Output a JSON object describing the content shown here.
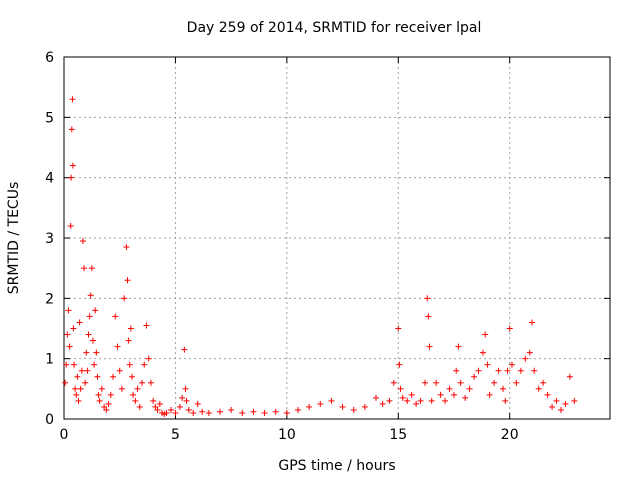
{
  "chart_data": {
    "type": "scatter",
    "title": "Day 259 of 2014, SRMTID for receiver lpal",
    "xlabel": "GPS time / hours",
    "ylabel": "SRMTID / TECUs",
    "xlim": [
      0,
      24.5
    ],
    "ylim": [
      0,
      6
    ],
    "xticks": [
      0,
      5,
      10,
      15,
      20
    ],
    "yticks": [
      0,
      1,
      2,
      3,
      4,
      5,
      6
    ],
    "xtick_labels": [
      "0",
      "5",
      "10",
      "15",
      "20"
    ],
    "ytick_labels": [
      "0",
      "1",
      "2",
      "3",
      "4",
      "5",
      "6"
    ],
    "grid": true,
    "marker": "+",
    "series": [
      {
        "name": "SRMTID",
        "color": "#ff0000",
        "x": [
          0.05,
          0.1,
          0.15,
          0.2,
          0.25,
          0.3,
          0.32,
          0.35,
          0.38,
          0.4,
          0.42,
          0.45,
          0.5,
          0.55,
          0.6,
          0.65,
          0.7,
          0.75,
          0.8,
          0.85,
          0.9,
          0.95,
          1.0,
          1.05,
          1.1,
          1.15,
          1.2,
          1.25,
          1.3,
          1.35,
          1.4,
          1.45,
          1.5,
          1.55,
          1.6,
          1.7,
          1.8,
          1.9,
          2.0,
          2.1,
          2.2,
          2.3,
          2.4,
          2.5,
          2.6,
          2.7,
          2.8,
          2.85,
          2.9,
          2.95,
          3.0,
          3.05,
          3.1,
          3.2,
          3.3,
          3.4,
          3.5,
          3.6,
          3.7,
          3.8,
          3.9,
          4.0,
          4.1,
          4.2,
          4.3,
          4.4,
          4.5,
          4.6,
          4.8,
          5.0,
          5.2,
          5.3,
          5.4,
          5.45,
          5.5,
          5.6,
          5.8,
          6.0,
          6.2,
          6.5,
          7.0,
          7.5,
          8.0,
          8.5,
          9.0,
          9.5,
          10.0,
          10.5,
          11.0,
          11.5,
          12.0,
          12.5,
          13.0,
          13.5,
          14.0,
          14.3,
          14.6,
          14.8,
          15.0,
          15.05,
          15.1,
          15.2,
          15.4,
          15.6,
          15.8,
          16.0,
          16.2,
          16.3,
          16.35,
          16.4,
          16.5,
          16.7,
          16.9,
          17.1,
          17.3,
          17.5,
          17.6,
          17.7,
          17.8,
          18.0,
          18.2,
          18.4,
          18.6,
          18.8,
          18.9,
          19.0,
          19.1,
          19.3,
          19.5,
          19.7,
          19.8,
          19.9,
          20.0,
          20.1,
          20.3,
          20.5,
          20.7,
          20.9,
          21.0,
          21.1,
          21.3,
          21.5,
          21.7,
          21.9,
          22.1,
          22.3,
          22.5,
          22.7,
          22.9
        ],
        "y": [
          0.6,
          0.9,
          1.4,
          1.8,
          1.2,
          3.2,
          4.0,
          4.8,
          5.3,
          4.2,
          1.5,
          0.9,
          0.5,
          0.4,
          0.7,
          0.3,
          1.6,
          0.5,
          0.8,
          2.95,
          2.5,
          0.6,
          1.1,
          0.8,
          1.4,
          1.7,
          2.05,
          2.5,
          1.3,
          0.9,
          1.8,
          1.1,
          0.7,
          0.4,
          0.3,
          0.5,
          0.2,
          0.15,
          0.25,
          0.4,
          0.7,
          1.7,
          1.2,
          0.8,
          0.5,
          2.0,
          2.85,
          2.3,
          1.3,
          0.9,
          1.5,
          0.7,
          0.4,
          0.3,
          0.5,
          0.2,
          0.6,
          0.9,
          1.55,
          1.0,
          0.6,
          0.3,
          0.2,
          0.15,
          0.25,
          0.1,
          0.08,
          0.1,
          0.15,
          0.1,
          0.2,
          0.35,
          1.15,
          0.5,
          0.3,
          0.15,
          0.1,
          0.25,
          0.12,
          0.1,
          0.12,
          0.15,
          0.1,
          0.12,
          0.1,
          0.12,
          0.1,
          0.15,
          0.2,
          0.25,
          0.3,
          0.2,
          0.15,
          0.2,
          0.35,
          0.25,
          0.3,
          0.6,
          1.5,
          0.9,
          0.5,
          0.35,
          0.3,
          0.4,
          0.25,
          0.3,
          0.6,
          2.0,
          1.7,
          1.2,
          0.3,
          0.6,
          0.4,
          0.3,
          0.5,
          0.4,
          0.8,
          1.2,
          0.6,
          0.35,
          0.5,
          0.7,
          0.8,
          1.1,
          1.4,
          0.9,
          0.4,
          0.6,
          0.8,
          0.5,
          0.3,
          0.8,
          1.5,
          0.9,
          0.6,
          0.8,
          1.0,
          1.1,
          1.6,
          0.8,
          0.5,
          0.6,
          0.4,
          0.2,
          0.3,
          0.15,
          0.25,
          0.7,
          0.3
        ]
      }
    ]
  }
}
